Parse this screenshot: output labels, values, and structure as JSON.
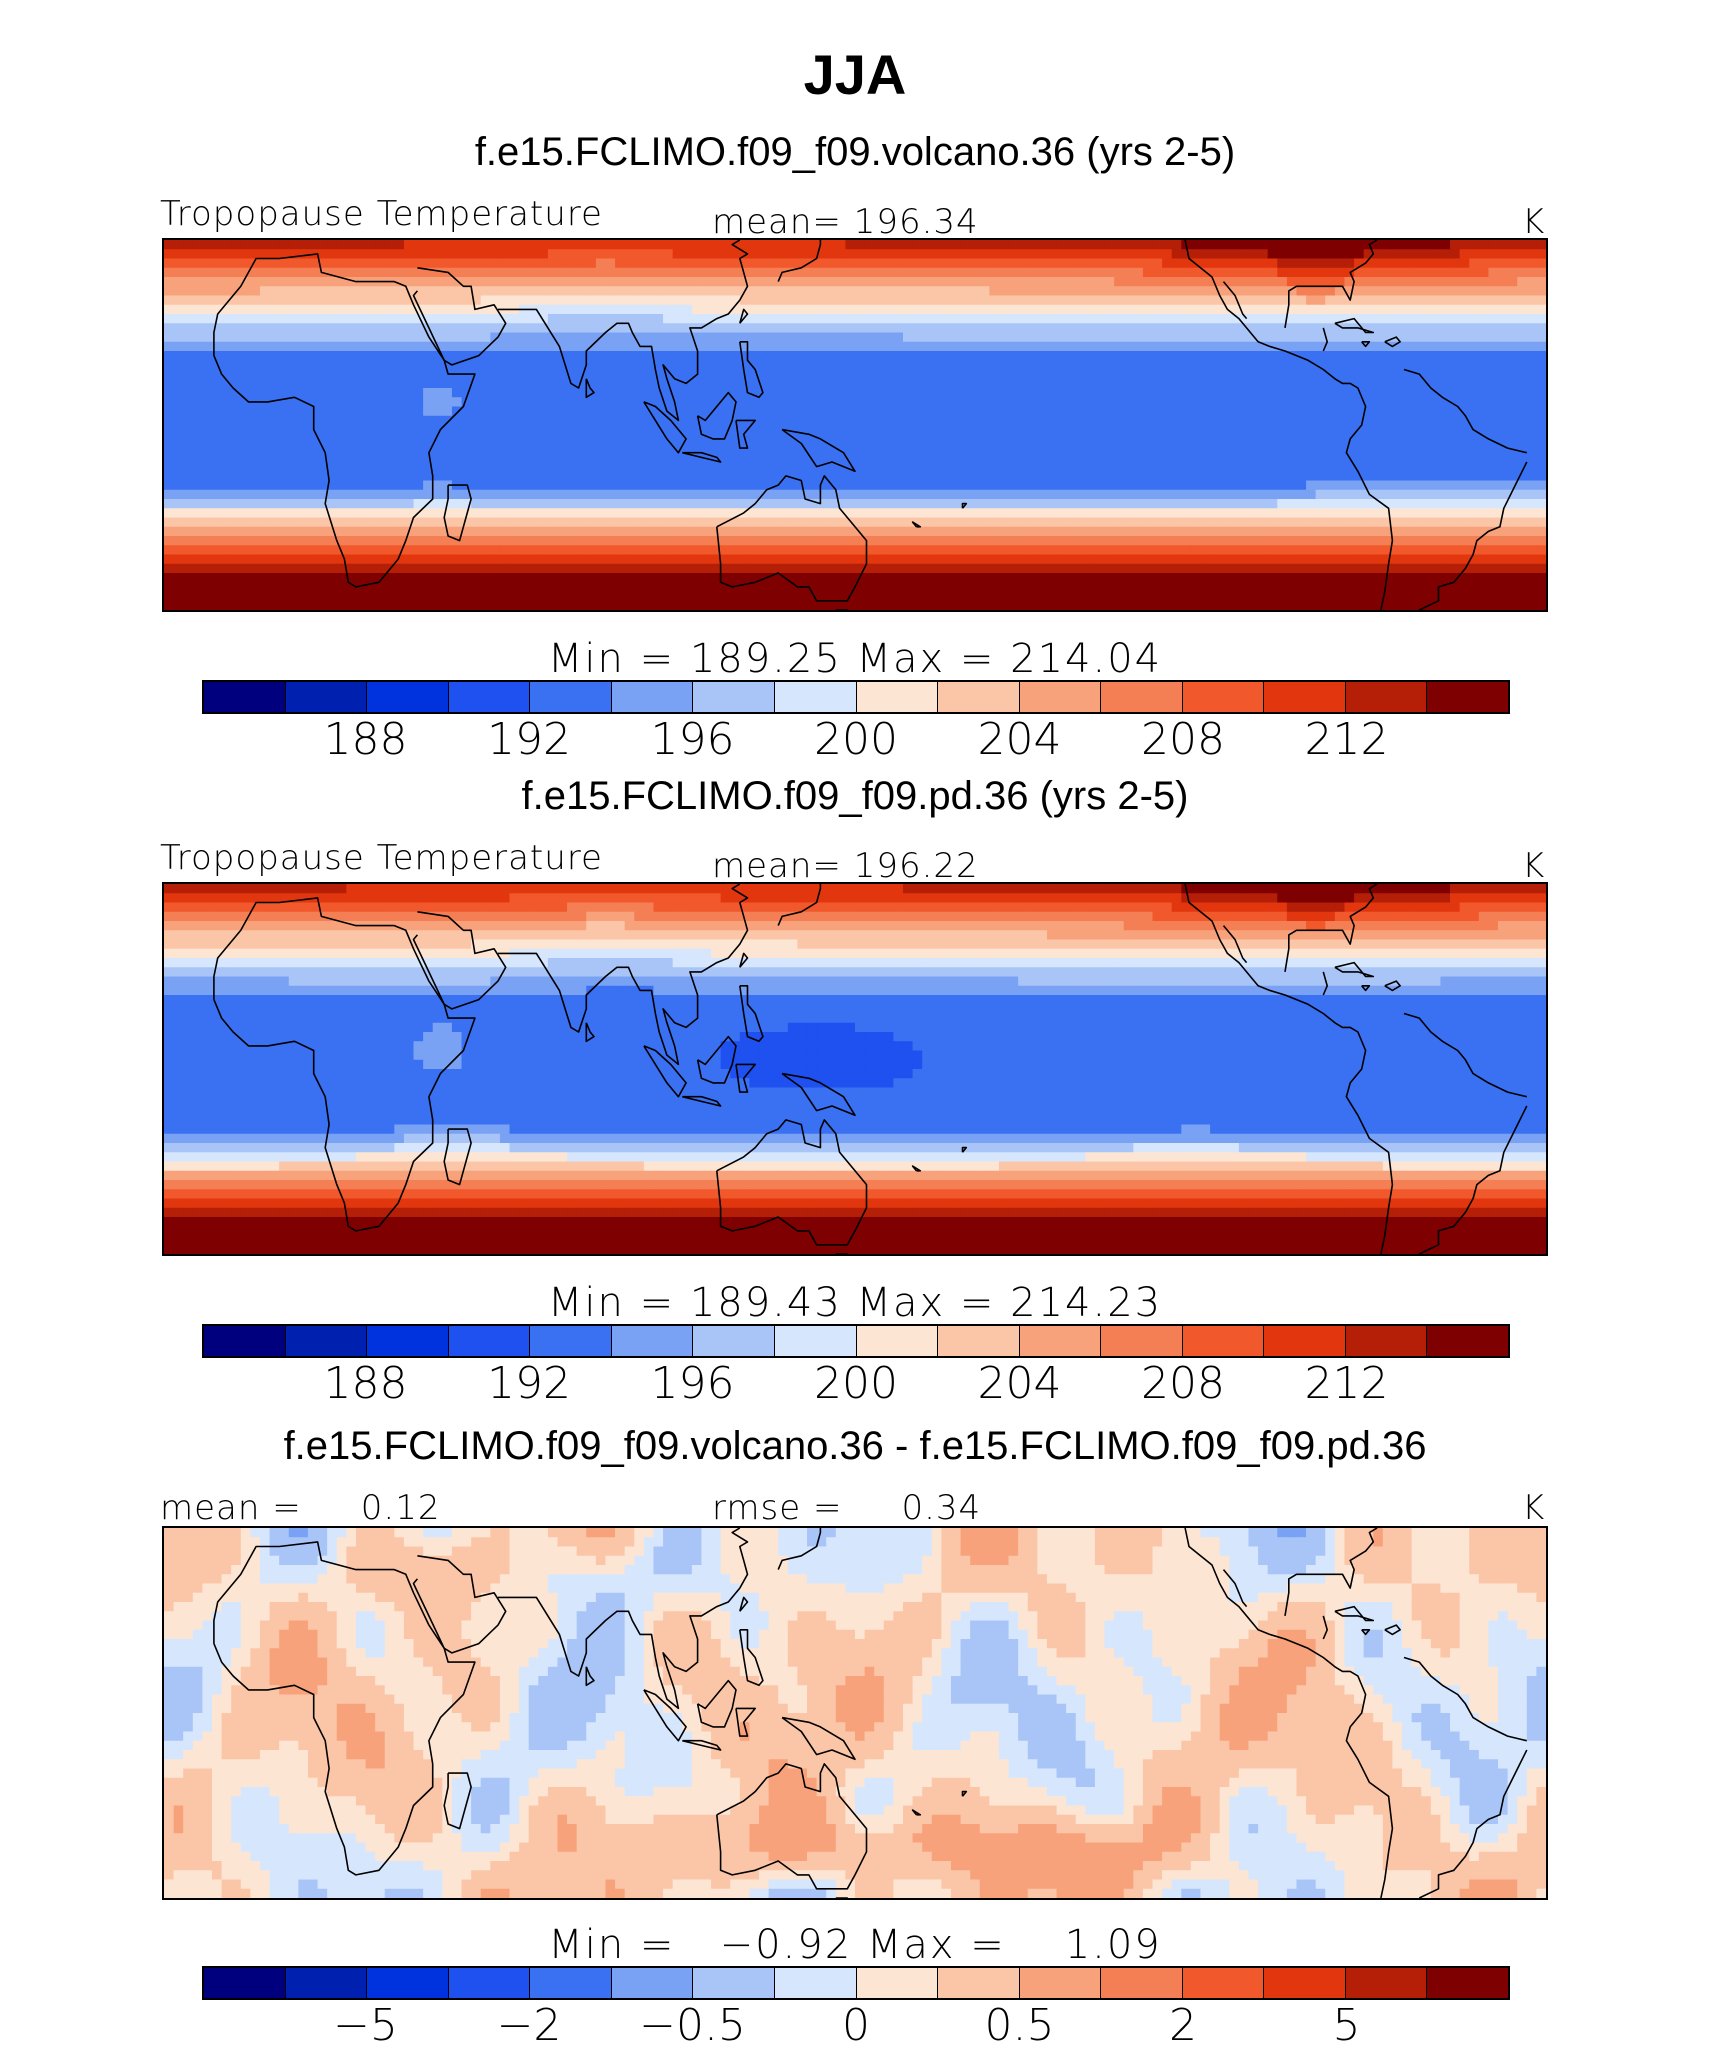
{
  "title": "JJA",
  "units": "K",
  "colormap": [
    "#00007f",
    "#0020b0",
    "#0033dd",
    "#1f50f0",
    "#3a70f2",
    "#7aa2f4",
    "#a9c5f8",
    "#d6e6fc",
    "#fde5d4",
    "#fbc6a7",
    "#f8a27c",
    "#f57f55",
    "#f1582c",
    "#e2360f",
    "#b51e07",
    "#7f0000"
  ],
  "chart_data": [
    {
      "type": "heatmap",
      "subtitle": "f.e15.FCLIMO.f09_f09.volcano.36 (yrs 2-5)",
      "left_label": "Tropopause Temperature",
      "center_label": "mean=  196.34",
      "right_label": "K",
      "min_label": "Min",
      "min_value": "189.25",
      "max_label": "Max",
      "max_value": "214.04",
      "colorbar_ticks": [
        "188",
        "192",
        "196",
        "200",
        "204",
        "208",
        "212"
      ],
      "min": 189.25,
      "max": 214.04,
      "mean": 196.34
    },
    {
      "type": "heatmap",
      "subtitle": "f.e15.FCLIMO.f09_f09.pd.36 (yrs 2-5)",
      "left_label": "Tropopause Temperature",
      "center_label": "mean=  196.22",
      "right_label": "K",
      "min_label": "Min",
      "min_value": "189.43",
      "max_label": "Max",
      "max_value": "214.23",
      "colorbar_ticks": [
        "188",
        "192",
        "196",
        "200",
        "204",
        "208",
        "212"
      ],
      "min": 189.43,
      "max": 214.23,
      "mean": 196.22
    },
    {
      "type": "heatmap",
      "subtitle": "f.e15.FCLIMO.f09_f09.volcano.36 - f.e15.FCLIMO.f09_f09.pd.36",
      "left_label": "mean =     0.12",
      "center_label": "rmse =     0.34",
      "right_label": "K",
      "min_label": "Min",
      "min_value": "−0.92",
      "max_label": "Max",
      "max_value": "1.09",
      "colorbar_ticks": [
        "−5",
        "−2",
        "−0.5",
        "0",
        "0.5",
        "2",
        "5"
      ],
      "min": -0.92,
      "max": 1.09,
      "mean": 0.12,
      "rmse": 0.34
    }
  ]
}
